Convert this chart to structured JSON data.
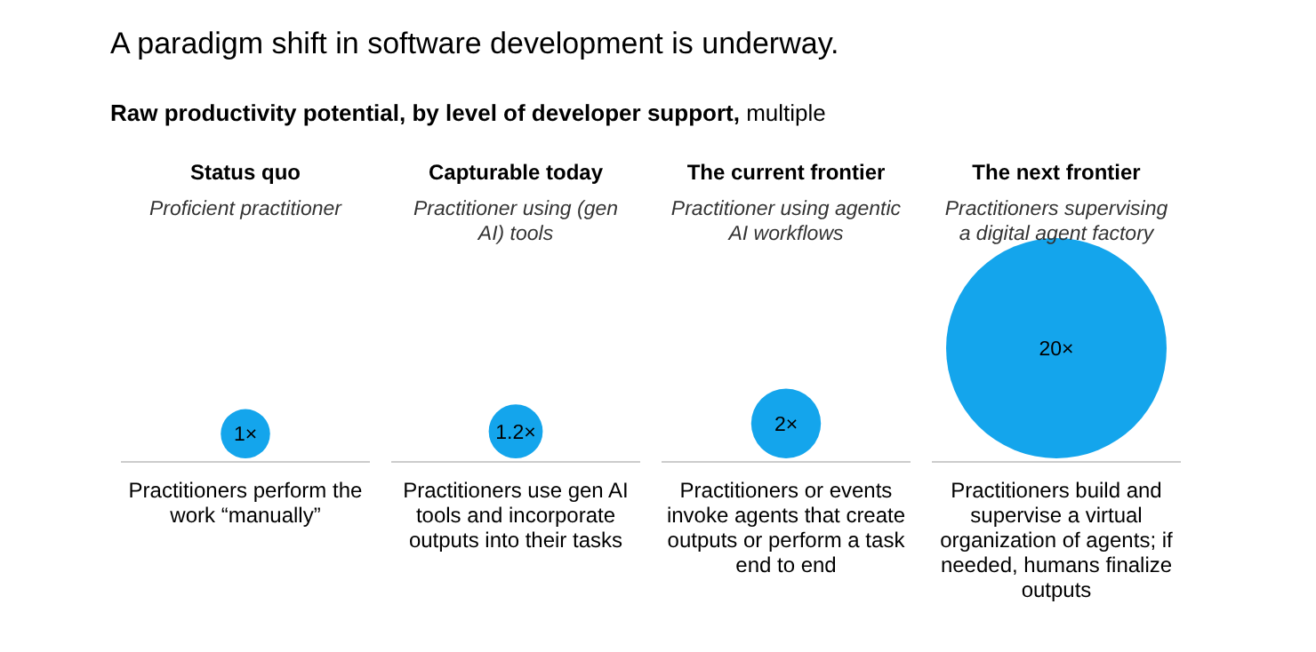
{
  "chart_data": {
    "type": "other",
    "title": "A paradigm shift in software development is underway.",
    "subtitle": "Raw productivity potential, by level of developer support, multiple",
    "categories": [
      "Status quo",
      "Capturable today",
      "The current frontier",
      "The next frontier"
    ],
    "values": [
      1,
      1.2,
      2,
      20
    ],
    "value_labels": [
      "1×",
      "1.2×",
      "2×",
      "20×"
    ],
    "color": "#14a5ec",
    "annotations": [
      "Proficient practitioner",
      "Practitioner using (gen AI) tools",
      "Practitioner using agentic AI workflows",
      "Practitioners supervising a digital agent factory",
      "Practitioners perform the work “manually”",
      "Practitioners use gen AI tools and incorporate outputs into their tasks",
      "Practitioners or events invoke agents that create outputs or perform a task end to end",
      "Practitioners build and supervise a virtual organization of agents; if needed, humans finalize outputs"
    ]
  }
}
